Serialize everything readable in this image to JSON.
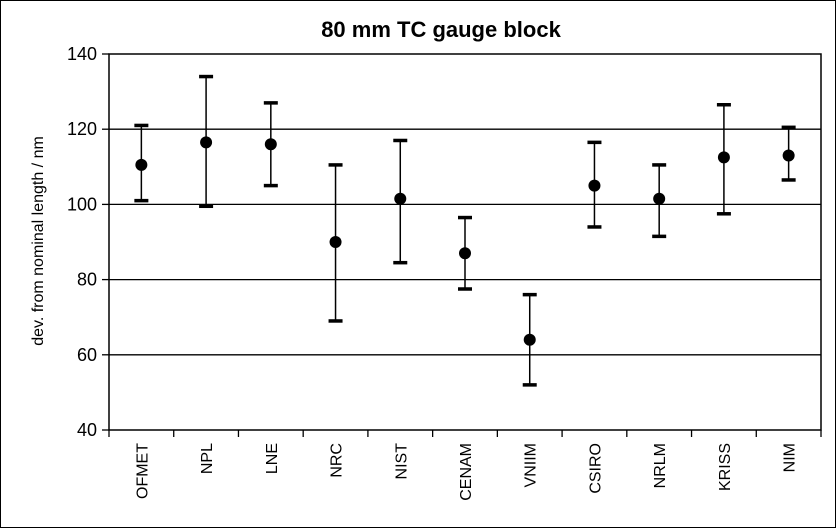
{
  "chart_data": {
    "type": "scatter",
    "title": "80 mm TC gauge block",
    "ylabel": "dev. from nominal length / nm",
    "xlabel": "",
    "categories": [
      "OFMET",
      "NPL",
      "LNE",
      "NRC",
      "NIST",
      "CENAM",
      "VNIIM",
      "CSIRO",
      "NRLM",
      "KRISS",
      "NIM"
    ],
    "values": [
      110.5,
      116.5,
      116,
      90,
      101.5,
      87,
      64,
      105,
      101.5,
      112.5,
      113
    ],
    "error_low": [
      101,
      99.5,
      105,
      69,
      84.5,
      77.5,
      52,
      94,
      91.5,
      97.5,
      106.5
    ],
    "error_high": [
      121,
      134,
      127,
      110.5,
      117,
      96.5,
      76,
      116.5,
      110.5,
      126.5,
      120.5
    ],
    "ylim": [
      40,
      140
    ],
    "yticks": [
      40,
      60,
      80,
      100,
      120,
      140
    ],
    "gridlines_y": [
      60,
      80,
      100,
      120
    ],
    "grid": "horizontal",
    "legend": "none",
    "colors": {
      "marker": "#000000",
      "grid": "#000000",
      "background": "#ffffff"
    }
  }
}
